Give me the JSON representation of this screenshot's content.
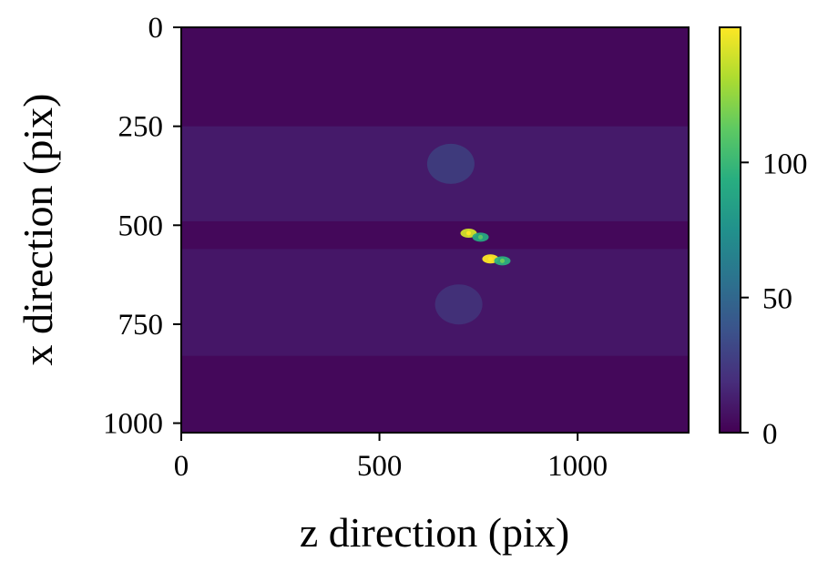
{
  "chart_data": {
    "type": "heatmap",
    "title": "",
    "xlabel": "z direction (pix)",
    "ylabel": "x direction (pix)",
    "xlim": [
      0,
      1280
    ],
    "ylim": [
      1024,
      0
    ],
    "xticks": [
      0,
      500,
      1000
    ],
    "yticks": [
      0,
      250,
      500,
      750,
      1000
    ],
    "colormap": "viridis",
    "colorbar": {
      "range": [
        0,
        150
      ],
      "ticks": [
        0,
        50,
        100
      ]
    },
    "background_level": 3,
    "bands": [
      {
        "x_range": [
          0,
          1280
        ],
        "y_range": [
          250,
          490
        ],
        "level": 12
      },
      {
        "x_range": [
          0,
          1280
        ],
        "y_range": [
          560,
          830
        ],
        "level": 10
      }
    ],
    "hot_spots": [
      {
        "x": 725,
        "y": 520,
        "value": 140
      },
      {
        "x": 755,
        "y": 530,
        "value": 90
      },
      {
        "x": 780,
        "y": 585,
        "value": 150
      },
      {
        "x": 810,
        "y": 590,
        "value": 95
      },
      {
        "x": 680,
        "y": 345,
        "value": 40
      },
      {
        "x": 700,
        "y": 700,
        "value": 32
      }
    ],
    "grid": false,
    "legend": "none"
  }
}
